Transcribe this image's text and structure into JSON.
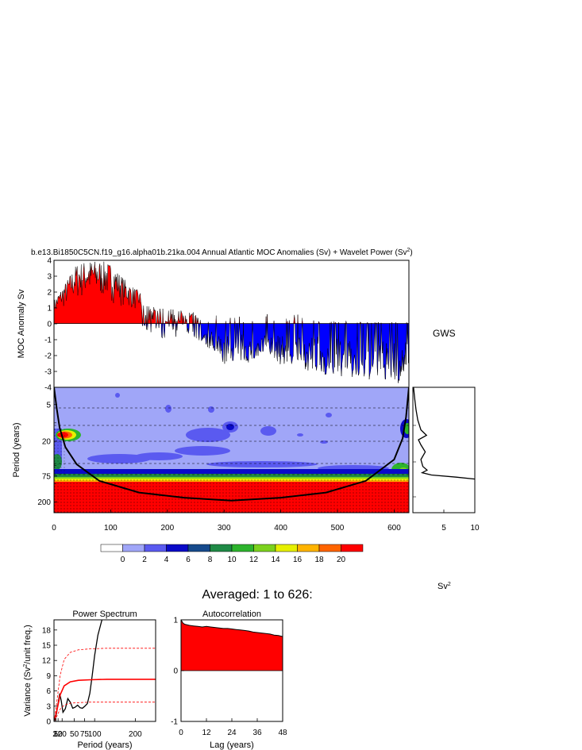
{
  "main_title": "b.e13.Bi1850C5CN.f19_g16.alpha01b.21ka.004 Annual Atlantic MOC Anomalies (Sv) + Wavelet Power (Sv",
  "main_title_sup": "2",
  "main_title_end": ")",
  "gws_label": "GWS",
  "sv2_label": "Sv",
  "sv2_sup": "2",
  "averaged_title": "Averaged: 1 to 626:",
  "colors": {
    "positive": "#ff0000",
    "negative": "#0000ff",
    "levels": [
      "#ffffff",
      "#a0a6f8",
      "#5a5af0",
      "#0a0ac8",
      "#164a8c",
      "#1f8a46",
      "#2db42d",
      "#7cd21e",
      "#e6f000",
      "#ffb400",
      "#ff6400",
      "#ff0000"
    ]
  },
  "chart_data": [
    {
      "type": "area",
      "name": "moc-anomaly",
      "ylabel": "MOC Anomaly Sv",
      "xlim": [
        0,
        626
      ],
      "ylim": [
        -4,
        4
      ],
      "yticks": [
        4,
        3,
        2,
        1,
        0,
        -1,
        -2,
        -3,
        -4
      ],
      "envelope": {
        "x": [
          0,
          20,
          40,
          60,
          80,
          100,
          130,
          160,
          190,
          220,
          240,
          260,
          280,
          300,
          320,
          340,
          360,
          380,
          400,
          430,
          460,
          500,
          540,
          580,
          610,
          626
        ],
        "upper": [
          1.5,
          2.6,
          3.8,
          4.0,
          4.0,
          3.8,
          2.6,
          1.8,
          1.4,
          1.3,
          1.2,
          1.0,
          0.9,
          0.7,
          0.5,
          0.6,
          0.8,
          0.7,
          0.5,
          0.7,
          0.3,
          0.2,
          0.2,
          0.1,
          0.2,
          0.1
        ],
        "lower": [
          0,
          0,
          0,
          0,
          0,
          0,
          0,
          -0.3,
          -1.0,
          -0.8,
          -0.6,
          -1.2,
          -1.8,
          -2.6,
          -2.3,
          -2.5,
          -2.3,
          -2.0,
          -2.6,
          -2.6,
          -3.2,
          -3.3,
          -3.6,
          -3.5,
          -3.9,
          -2.4
        ]
      }
    },
    {
      "type": "heatmap",
      "name": "wavelet-power",
      "xlabel": "",
      "ylabel": "Period (years)",
      "xlim": [
        0,
        626
      ],
      "xticks": [
        0,
        100,
        200,
        300,
        400,
        500,
        600
      ],
      "ytick_labels": [
        "5",
        "20",
        "75",
        "200"
      ],
      "colorbar": {
        "labels": [
          "0",
          "2",
          "4",
          "6",
          "8",
          "10",
          "12",
          "14",
          "16",
          "18",
          "20"
        ]
      },
      "cone_of_influence": {
        "x": [
          0,
          5,
          10,
          20,
          40,
          80,
          150,
          230,
          313,
          400,
          480,
          550,
          600,
          615,
          621,
          626
        ],
        "period": [
          2.6,
          6,
          12,
          25,
          48,
          90,
          140,
          170,
          190,
          170,
          140,
          90,
          40,
          18,
          8,
          2.6
        ]
      }
    },
    {
      "type": "line",
      "name": "global-wavelet-spectrum",
      "xlabel": "",
      "xticks": [
        5,
        10
      ],
      "xlim": [
        0,
        10
      ],
      "points": {
        "power": [
          0.1,
          0.3,
          0.5,
          0.8,
          1.3,
          2.2,
          0.9,
          1.3,
          2.0,
          1.3,
          1.6,
          2.3,
          1.5,
          3.0,
          7.0,
          10.0
        ],
        "period": [
          2.6,
          4,
          6,
          9,
          13,
          16,
          19,
          23,
          30,
          40,
          52,
          60,
          66,
          72,
          78,
          84
        ]
      }
    },
    {
      "type": "line",
      "name": "power-spectrum",
      "title": "Power Spectrum",
      "xlabel": "Period (years)",
      "ylabel": "Variance (Sv2/unit freq.)",
      "xlim": [
        0,
        250
      ],
      "ylim": [
        0,
        20
      ],
      "xtick_labels": [
        "2",
        "5",
        "10",
        "20",
        "50",
        "75",
        "100",
        "200"
      ],
      "yticks": [
        0,
        3,
        6,
        9,
        12,
        15,
        18
      ],
      "series": [
        {
          "style": "black",
          "x": [
            2,
            6,
            10,
            14,
            18,
            22,
            28,
            34,
            40,
            46,
            52,
            58,
            64,
            70,
            76,
            82,
            88,
            94,
            100,
            108,
            118
          ],
          "y": [
            0.3,
            1.5,
            3.5,
            5.5,
            4.0,
            1.8,
            2.5,
            4.5,
            3.8,
            2.6,
            2.8,
            3.2,
            2.7,
            2.6,
            3.0,
            3.5,
            5.5,
            9.0,
            13.0,
            17.0,
            20.0
          ]
        },
        {
          "style": "red-solid",
          "x": [
            2,
            8,
            15,
            25,
            40,
            60,
            90,
            130,
            180,
            250
          ],
          "y": [
            0.5,
            2.5,
            5.2,
            7.0,
            7.8,
            8.1,
            8.2,
            8.3,
            8.3,
            8.3
          ]
        },
        {
          "style": "red-dashed",
          "x": [
            2,
            8,
            15,
            25,
            40,
            60,
            90,
            130,
            180,
            250
          ],
          "y": [
            0.8,
            4.5,
            9.0,
            12.2,
            13.6,
            14.1,
            14.3,
            14.4,
            14.4,
            14.4
          ]
        },
        {
          "style": "red-dashed",
          "x": [
            2,
            8,
            15,
            25,
            40,
            60,
            90,
            130,
            180,
            250
          ],
          "y": [
            0.1,
            1.2,
            2.4,
            3.2,
            3.6,
            3.7,
            3.8,
            3.8,
            3.8,
            3.8
          ]
        }
      ]
    },
    {
      "type": "area",
      "name": "autocorrelation",
      "title": "Autocorrelation",
      "xlabel": "Lag (years)",
      "xlim": [
        0,
        48
      ],
      "ylim": [
        -1,
        1
      ],
      "xticks": [
        0,
        12,
        24,
        36,
        48
      ],
      "yticks": [
        1,
        0,
        -1
      ],
      "x": [
        0,
        1,
        2,
        4,
        6,
        8,
        10,
        12,
        14,
        16,
        18,
        20,
        22,
        24,
        26,
        28,
        30,
        32,
        34,
        36,
        38,
        40,
        42,
        44,
        46,
        48
      ],
      "y": [
        1.0,
        0.93,
        0.91,
        0.89,
        0.88,
        0.87,
        0.86,
        0.87,
        0.86,
        0.85,
        0.84,
        0.83,
        0.83,
        0.82,
        0.81,
        0.8,
        0.79,
        0.78,
        0.76,
        0.75,
        0.74,
        0.73,
        0.72,
        0.7,
        0.69,
        0.67
      ]
    }
  ]
}
